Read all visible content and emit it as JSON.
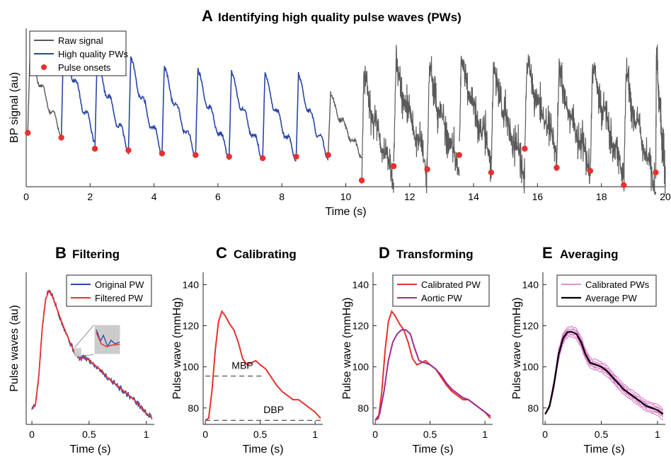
{
  "figure": {
    "colors": {
      "raw": "#5a5a5a",
      "hq": "#2a46a8",
      "onset": "#e8312e",
      "red": "#e8312e",
      "aortic": "#9b2d8c",
      "pink": "#d76fc3",
      "average": "#000000",
      "inset": "#cccccc"
    }
  },
  "chart_data": [
    {
      "id": "A",
      "type": "line",
      "letter": "A",
      "title": "Identifying high quality pulse waves (PWs)",
      "xlabel": "Time (s)",
      "ylabel": "BP signal (au)",
      "xlim": [
        0,
        20
      ],
      "ylim": [
        0,
        1
      ],
      "xticks": [
        0,
        2,
        4,
        6,
        8,
        10,
        12,
        14,
        16,
        18,
        20
      ],
      "yticks": [],
      "legend": {
        "position": "top-left",
        "entries": [
          "Raw signal",
          "High quality PWs",
          "Pulse onsets"
        ]
      },
      "series": [
        {
          "name": "Raw signal",
          "color": "raw"
        },
        {
          "name": "High quality PWs",
          "color": "hq"
        },
        {
          "name": "Pulse onsets",
          "color": "onset",
          "marker": "dot",
          "x": [
            0.05,
            1.1,
            2.15,
            3.2,
            4.25,
            5.3,
            6.35,
            7.4,
            8.45,
            9.45,
            10.5,
            11.5,
            12.55,
            13.55,
            14.55,
            15.6,
            16.6,
            17.65,
            18.7,
            19.7
          ],
          "y": [
            0.34,
            0.31,
            0.24,
            0.23,
            0.21,
            0.2,
            0.19,
            0.18,
            0.19,
            0.2,
            0.04,
            0.13,
            0.11,
            0.2,
            0.09,
            0.24,
            0.12,
            0.1,
            0.01,
            0.09
          ]
        }
      ],
      "beats": {
        "raw_first": {
          "start": 0.05,
          "end": 1.1,
          "onset": 0.34,
          "peak": 0.88
        },
        "hq": [
          {
            "start": 1.1,
            "end": 2.15,
            "onset": 0.31,
            "peak": 0.96
          },
          {
            "start": 2.15,
            "end": 3.2,
            "onset": 0.24,
            "peak": 0.84
          },
          {
            "start": 3.2,
            "end": 4.25,
            "onset": 0.23,
            "peak": 0.83
          },
          {
            "start": 4.25,
            "end": 5.3,
            "onset": 0.21,
            "peak": 0.77
          },
          {
            "start": 5.3,
            "end": 6.35,
            "onset": 0.2,
            "peak": 0.75
          },
          {
            "start": 6.35,
            "end": 7.4,
            "onset": 0.19,
            "peak": 0.74
          },
          {
            "start": 7.4,
            "end": 8.45,
            "onset": 0.18,
            "peak": 0.73
          },
          {
            "start": 8.45,
            "end": 9.45,
            "onset": 0.19,
            "peak": 0.72
          }
        ],
        "raw_transition": {
          "start": 9.45,
          "end": 10.5,
          "onset": 0.2,
          "peak": 0.6
        },
        "raw_noisy": [
          {
            "start": 10.5,
            "end": 11.5,
            "onset": 0.04,
            "peak": 0.74
          },
          {
            "start": 11.5,
            "end": 12.55,
            "onset": 0.13,
            "peak": 0.8
          },
          {
            "start": 12.55,
            "end": 13.55,
            "onset": 0.11,
            "peak": 0.76
          },
          {
            "start": 13.55,
            "end": 14.55,
            "onset": 0.2,
            "peak": 0.82
          },
          {
            "start": 14.55,
            "end": 15.6,
            "onset": 0.09,
            "peak": 0.77
          },
          {
            "start": 15.6,
            "end": 16.6,
            "onset": 0.24,
            "peak": 0.8
          },
          {
            "start": 16.6,
            "end": 17.65,
            "onset": 0.12,
            "peak": 0.74
          },
          {
            "start": 17.65,
            "end": 18.7,
            "onset": 0.1,
            "peak": 0.78
          },
          {
            "start": 18.7,
            "end": 19.7,
            "onset": 0.01,
            "peak": 0.74
          },
          {
            "start": 19.7,
            "end": 20.0,
            "onset": 0.09,
            "peak": 0.88
          }
        ]
      }
    },
    {
      "id": "B",
      "type": "line",
      "letter": "B",
      "title": "Filtering",
      "xlabel": "Time (s)",
      "ylabel": "Pulse waves (au)",
      "xlim": [
        -0.05,
        1.07
      ],
      "ylim": [
        0.1,
        1.05
      ],
      "xticks": [
        0,
        0.5,
        1
      ],
      "xticklabels": [
        "0",
        "0.5",
        "1"
      ],
      "yticks": [],
      "legend": {
        "position": "top-right",
        "entries": [
          "Original PW",
          "Filtered PW"
        ]
      },
      "series": [
        {
          "name": "Original PW",
          "color": "hq"
        },
        {
          "name": "Filtered PW",
          "color": "red"
        }
      ],
      "shape": {
        "x": [
          0,
          0.03,
          0.06,
          0.09,
          0.12,
          0.15,
          0.18,
          0.22,
          0.26,
          0.3,
          0.34,
          0.38,
          0.42,
          0.46,
          0.5,
          0.55,
          0.6,
          0.65,
          0.7,
          0.75,
          0.8,
          0.85,
          0.9,
          0.95,
          1.0,
          1.05
        ],
        "y": [
          0.2,
          0.22,
          0.4,
          0.7,
          0.88,
          0.94,
          0.9,
          0.82,
          0.74,
          0.67,
          0.6,
          0.54,
          0.51,
          0.52,
          0.5,
          0.47,
          0.44,
          0.4,
          0.37,
          0.34,
          0.31,
          0.28,
          0.25,
          0.21,
          0.17,
          0.14
        ]
      }
    },
    {
      "id": "C",
      "type": "line",
      "letter": "C",
      "title": "Calibrating",
      "xlabel": "Time (s)",
      "ylabel": "Pulse wave (mmHg)",
      "xlim": [
        -0.02,
        1.07
      ],
      "ylim": [
        72,
        146
      ],
      "xticks": [
        0,
        0.5,
        1
      ],
      "xticklabels": [
        "0",
        "0.5",
        "1"
      ],
      "yticks": [
        80,
        100,
        120,
        140
      ],
      "series": [
        {
          "name": "Calibrated PW",
          "color": "red",
          "x": [
            0,
            0.03,
            0.06,
            0.09,
            0.12,
            0.15,
            0.18,
            0.22,
            0.26,
            0.3,
            0.34,
            0.38,
            0.42,
            0.46,
            0.5,
            0.55,
            0.6,
            0.65,
            0.7,
            0.75,
            0.8,
            0.85,
            0.9,
            0.95,
            1.0,
            1.05
          ],
          "y": [
            74,
            75,
            88,
            108,
            122,
            127,
            125,
            121,
            118,
            112,
            104,
            101,
            102,
            103,
            101,
            99,
            95,
            91,
            88,
            86,
            84,
            84,
            82,
            80,
            78,
            75
          ]
        }
      ],
      "reference_lines": [
        {
          "label": "MBP",
          "y": 95.5,
          "x": [
            0,
            0.52
          ]
        },
        {
          "label": "DBP",
          "y": 74,
          "x": [
            0,
            1.07
          ]
        }
      ]
    },
    {
      "id": "D",
      "type": "line",
      "letter": "D",
      "title": "Transforming",
      "xlabel": "Time (s)",
      "ylabel": "Pulse wave (mmHg)",
      "xlim": [
        -0.02,
        1.07
      ],
      "ylim": [
        72,
        146
      ],
      "xticks": [
        0,
        0.5,
        1
      ],
      "xticklabels": [
        "0",
        "0.5",
        "1"
      ],
      "yticks": [
        80,
        100,
        120,
        140
      ],
      "legend": {
        "position": "top-right",
        "entries": [
          "Calibrated PW",
          "Aortic PW"
        ]
      },
      "series": [
        {
          "name": "Calibrated PW",
          "color": "red",
          "x": [
            0,
            0.03,
            0.06,
            0.09,
            0.12,
            0.15,
            0.18,
            0.22,
            0.26,
            0.3,
            0.34,
            0.38,
            0.42,
            0.46,
            0.5,
            0.55,
            0.6,
            0.65,
            0.7,
            0.75,
            0.8,
            0.85,
            0.9,
            0.95,
            1.0,
            1.05
          ],
          "y": [
            74,
            75,
            88,
            108,
            122,
            127,
            125,
            121,
            118,
            112,
            104,
            101,
            102,
            103,
            101,
            99,
            95,
            91,
            88,
            86,
            84,
            84,
            82,
            80,
            78,
            75
          ]
        },
        {
          "name": "Aortic PW",
          "color": "aortic",
          "x": [
            0,
            0.04,
            0.08,
            0.12,
            0.16,
            0.2,
            0.24,
            0.28,
            0.32,
            0.36,
            0.4,
            0.45,
            0.5,
            0.55,
            0.6,
            0.65,
            0.7,
            0.75,
            0.8,
            0.85,
            0.9,
            0.95,
            1.0,
            1.05
          ],
          "y": [
            74,
            77,
            88,
            103,
            112,
            116,
            118,
            118,
            116,
            109,
            103,
            102,
            101,
            99,
            96,
            92,
            89,
            87,
            85,
            84,
            82,
            80,
            78,
            76
          ]
        }
      ]
    },
    {
      "id": "E",
      "type": "line",
      "letter": "E",
      "title": "Averaging",
      "xlabel": "Time (s)",
      "ylabel": "Pulse wave (mmHg)",
      "xlim": [
        -0.02,
        1.07
      ],
      "ylim": [
        72,
        146
      ],
      "xticks": [
        0,
        0.5,
        1
      ],
      "xticklabels": [
        "0",
        "0.5",
        "1"
      ],
      "yticks": [
        80,
        100,
        120,
        140
      ],
      "legend": {
        "position": "top-right",
        "entries": [
          "Calibrated PWs",
          "Average PW"
        ]
      },
      "series": [
        {
          "name": "Calibrated PWs",
          "color": "pink",
          "offsets": [
            -2.5,
            -1.5,
            -0.8,
            0,
            0.8,
            1.5,
            2.5
          ]
        },
        {
          "name": "Average PW",
          "color": "average",
          "x": [
            0,
            0.04,
            0.08,
            0.12,
            0.16,
            0.2,
            0.24,
            0.28,
            0.32,
            0.36,
            0.4,
            0.45,
            0.5,
            0.55,
            0.6,
            0.65,
            0.7,
            0.75,
            0.8,
            0.85,
            0.9,
            0.95,
            1.0,
            1.05
          ],
          "y": [
            77,
            81,
            92,
            106,
            114,
            117,
            117,
            116,
            112,
            106,
            102,
            101,
            100,
            98,
            95,
            92,
            89,
            87,
            85,
            83,
            81,
            80,
            79,
            77
          ]
        }
      ]
    }
  ]
}
